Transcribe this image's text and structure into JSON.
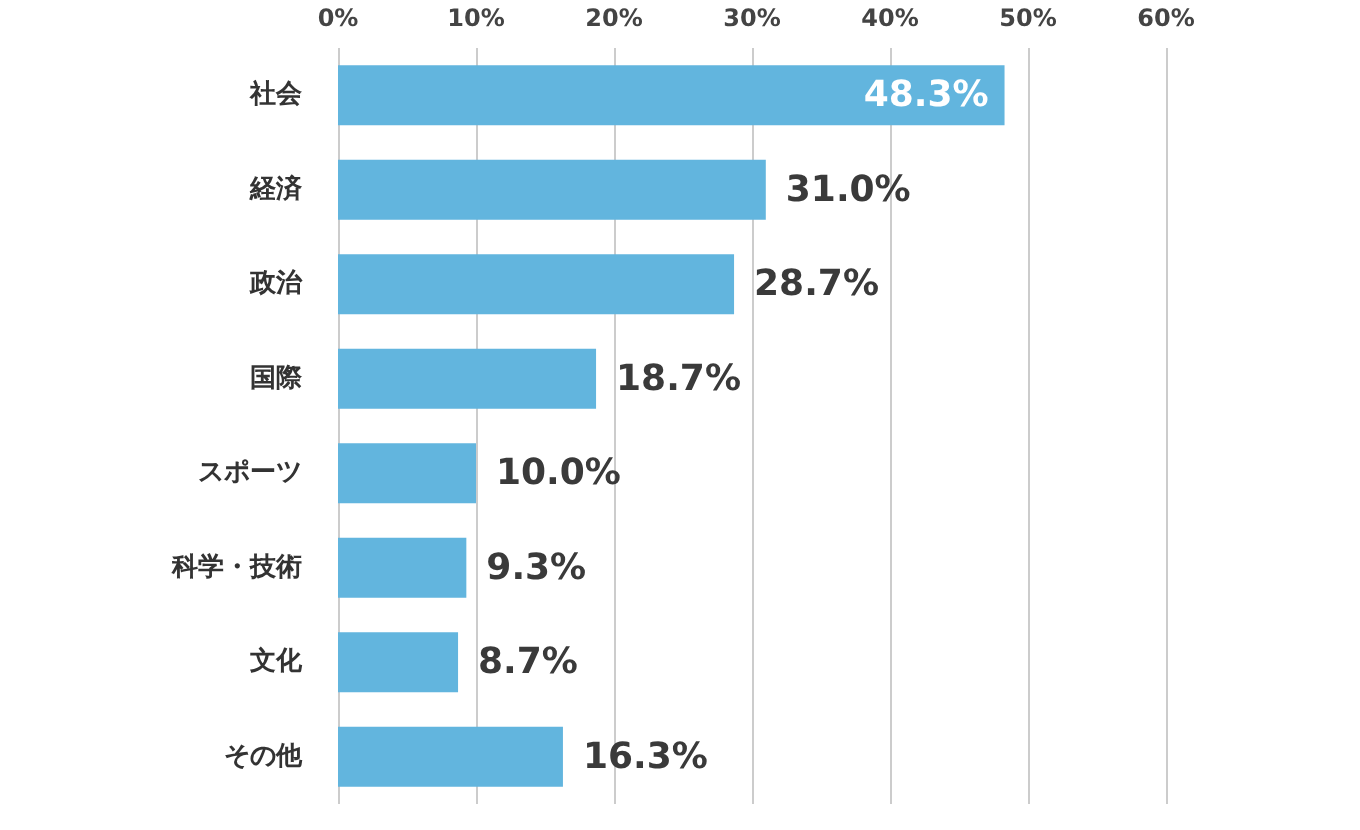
{
  "chart_data": {
    "type": "bar",
    "orientation": "horizontal",
    "categories": [
      "社会",
      "経済",
      "政治",
      "国際",
      "スポーツ",
      "科学・技術",
      "文化",
      "その他"
    ],
    "values": [
      48.3,
      31.0,
      28.7,
      18.7,
      10.0,
      9.3,
      8.7,
      16.3
    ],
    "value_labels": [
      "48.3%",
      "31.0%",
      "28.7%",
      "18.7%",
      "10.0%",
      "9.3%",
      "8.7%",
      "16.3%"
    ],
    "color": "#62b5de",
    "xlim": [
      0,
      60
    ],
    "xticks": [
      {
        "value": 0,
        "label": "0%"
      },
      {
        "value": 10,
        "label": "10%"
      },
      {
        "value": 20,
        "label": "20%"
      },
      {
        "value": 30,
        "label": "30%"
      },
      {
        "value": 40,
        "label": "40%"
      },
      {
        "value": 50,
        "label": "50%"
      },
      {
        "value": 60,
        "label": "60%"
      }
    ],
    "grid": "x"
  }
}
